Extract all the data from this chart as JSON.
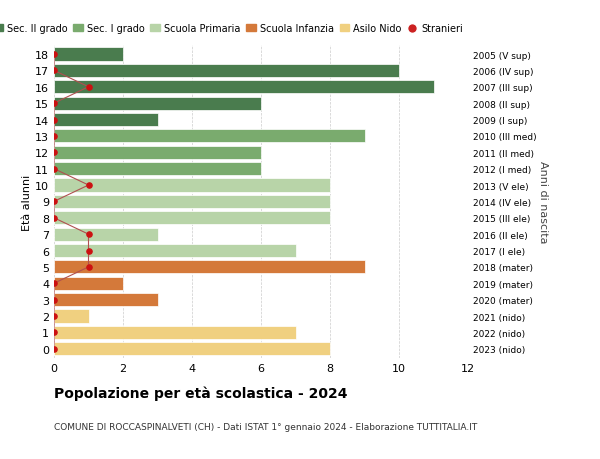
{
  "ages": [
    18,
    17,
    16,
    15,
    14,
    13,
    12,
    11,
    10,
    9,
    8,
    7,
    6,
    5,
    4,
    3,
    2,
    1,
    0
  ],
  "right_labels": [
    "2005 (V sup)",
    "2006 (IV sup)",
    "2007 (III sup)",
    "2008 (II sup)",
    "2009 (I sup)",
    "2010 (III med)",
    "2011 (II med)",
    "2012 (I med)",
    "2013 (V ele)",
    "2014 (IV ele)",
    "2015 (III ele)",
    "2016 (II ele)",
    "2017 (I ele)",
    "2018 (mater)",
    "2019 (mater)",
    "2020 (mater)",
    "2021 (nido)",
    "2022 (nido)",
    "2023 (nido)"
  ],
  "bar_values": [
    2,
    10,
    11,
    6,
    3,
    9,
    6,
    6,
    8,
    8,
    8,
    3,
    7,
    9,
    2,
    3,
    1,
    7,
    8
  ],
  "bar_colors": [
    "#4a7c4e",
    "#4a7c4e",
    "#4a7c4e",
    "#4a7c4e",
    "#4a7c4e",
    "#7aab6e",
    "#7aab6e",
    "#7aab6e",
    "#b8d4a8",
    "#b8d4a8",
    "#b8d4a8",
    "#b8d4a8",
    "#b8d4a8",
    "#d4793a",
    "#d4793a",
    "#d4793a",
    "#f0d080",
    "#f0d080",
    "#f0d080"
  ],
  "stranieri_x": [
    0,
    0,
    1,
    0,
    0,
    0,
    0,
    0,
    1,
    0,
    0,
    1,
    1,
    1,
    0,
    0,
    0,
    0,
    0
  ],
  "legend_labels": [
    "Sec. II grado",
    "Sec. I grado",
    "Scuola Primaria",
    "Scuola Infanzia",
    "Asilo Nido",
    "Stranieri"
  ],
  "legend_colors": [
    "#4a7c4e",
    "#7aab6e",
    "#b8d4a8",
    "#d4793a",
    "#f0d080",
    "#cc2222"
  ],
  "title": "Popolazione per età scolastica - 2024",
  "subtitle": "COMUNE DI ROCCASPINALVETI (CH) - Dati ISTAT 1° gennaio 2024 - Elaborazione TUTTITALIA.IT",
  "ylabel": "Età alunni",
  "right_ylabel": "Anni di nascita",
  "xlim": [
    0,
    12
  ],
  "xticks": [
    0,
    2,
    4,
    6,
    8,
    10,
    12
  ],
  "bg_color": "#ffffff",
  "grid_color": "#cccccc",
  "bar_height": 0.8,
  "stranieri_line_color": "#b05050",
  "stranieri_dot_color": "#cc1111"
}
